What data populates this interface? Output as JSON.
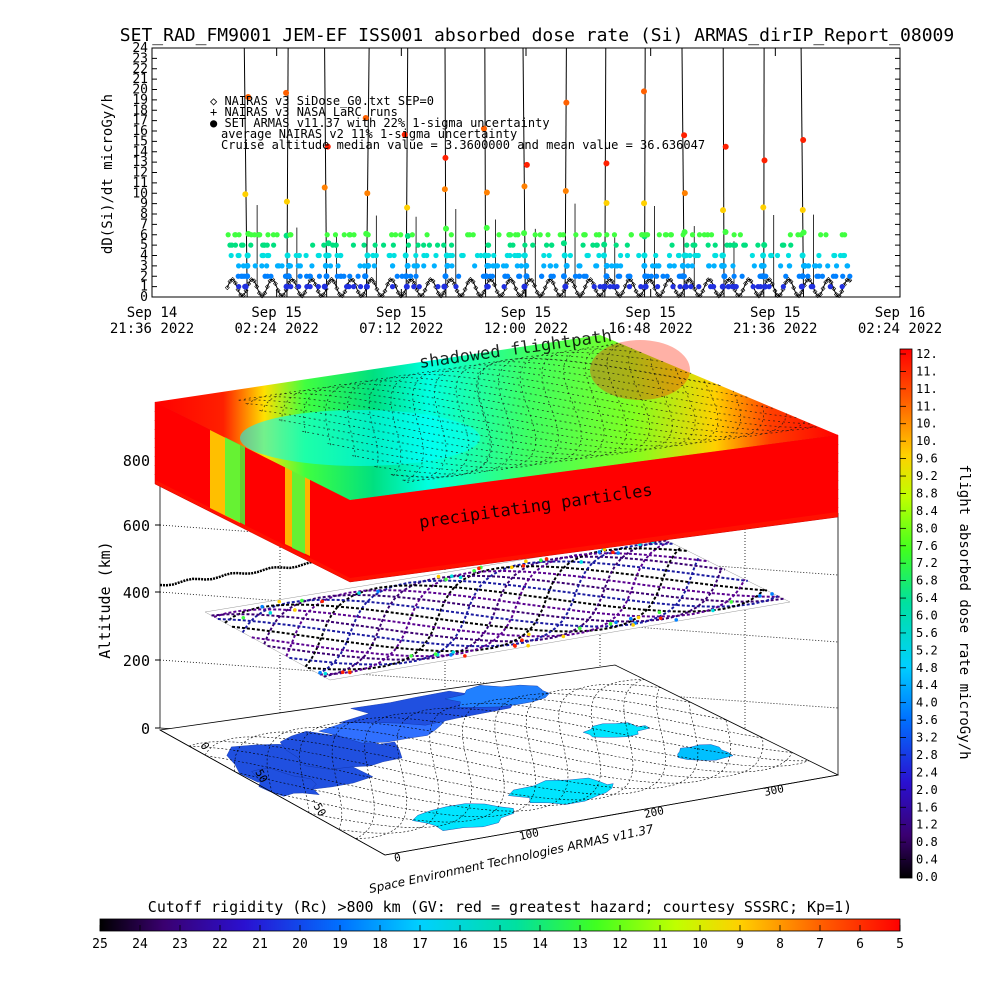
{
  "title": "SET_RAD_FM9001  JEM-EF ISS001 absorbed dose rate (Si) ARMAS_dirIP_Report_08009",
  "top_plot": {
    "ylabel": "dD(Si)/dt microGy/h",
    "legend": [
      "◇ NAIRAS v3 SiDose_G0.txt SEP=0",
      "+ NAIRAS v3 NASA LaRC runs",
      "● SET ARMAS v11.37 with 22% 1-sigma uncertainty",
      "average NAIRAS v2 11% 1-sigma uncertainty",
      "Cruise altitude median value = 3.3600000 and mean value = 36.636047"
    ]
  },
  "chart_data": [
    {
      "type": "scatter",
      "title": "SET_RAD_FM9001  JEM-EF ISS001 absorbed dose rate (Si) ARMAS_dirIP_Report_08009",
      "ylabel": "dD(Si)/dt microGy/h",
      "xlabel": "",
      "ylim": [
        0,
        24
      ],
      "yticks": [
        "0",
        "1",
        "2",
        "3",
        "4",
        "5",
        "6",
        "7",
        "8",
        "9",
        "10",
        "11",
        "12",
        "13",
        "14",
        "15",
        "16",
        "17",
        "18",
        "19",
        "20",
        "21",
        "22",
        "23",
        "24"
      ],
      "xticks": [
        {
          "line1": "Sep 14",
          "line2": "21:36 2022"
        },
        {
          "line1": "Sep 15",
          "line2": "02:24 2022"
        },
        {
          "line1": "Sep 15",
          "line2": "07:12 2022"
        },
        {
          "line1": "Sep 15",
          "line2": "12:00 2022"
        },
        {
          "line1": "Sep 15",
          "line2": "16:48 2022"
        },
        {
          "line1": "Sep 15",
          "line2": "21:36 2022"
        },
        {
          "line1": "Sep 16",
          "line2": "02:24 2022"
        }
      ],
      "x_range": [
        "2022-09-14 21:36",
        "2022-09-16 02:24"
      ],
      "data_range": [
        "2022-09-15 00:30",
        "2022-09-16 00:30"
      ],
      "orbit_period_hours": 1.53,
      "series": [
        {
          "name": "NAIRAS v3 SiDose_G0.txt SEP=0",
          "marker": "diamond",
          "baseline_range": [
            0,
            2
          ]
        },
        {
          "name": "NAIRAS v3 NASA LaRC runs",
          "marker": "plus"
        },
        {
          "name": "SET ARMAS v11.37 with 22% 1-sigma uncertainty",
          "marker": "dot",
          "typical_range": [
            1,
            8
          ],
          "spike_max": 24
        }
      ]
    },
    {
      "type": "heatmap",
      "description_text": "Space Environment Technologies ARMAS v11.37",
      "zlabel": "Altitude (km)",
      "zticks": [
        "0",
        "200",
        "400",
        "600",
        "800"
      ],
      "lat_ticks": [
        "0",
        "50",
        "-50"
      ],
      "lon_ticks": [
        "0",
        "100",
        "200",
        "300"
      ],
      "annotations": [
        "shadowed flightpath",
        "precipitating particles"
      ],
      "layer_altitudes_km": [
        0,
        400,
        900
      ],
      "colorbar_right": {
        "label": "flight absorbed dose rate microGy/h",
        "ticks": [
          "12.",
          "11.",
          "11.",
          "11.",
          "10.",
          "10.",
          "9.6",
          "9.2",
          "8.8",
          "8.4",
          "8.0",
          "7.6",
          "7.2",
          "6.8",
          "6.4",
          "6.0",
          "5.6",
          "5.2",
          "4.8",
          "4.4",
          "4.0",
          "3.6",
          "3.2",
          "2.8",
          "2.4",
          "2.0",
          "1.6",
          "1.2",
          "0.8",
          "0.4",
          "0.0"
        ],
        "range": [
          0,
          12
        ]
      },
      "colorbar_bottom": {
        "label": "Cutoff rigidity (Rc) >800 km (GV: red = greatest hazard; courtesy SSSRC; Kp=1)",
        "ticks": [
          "25",
          "24",
          "23",
          "22",
          "21",
          "20",
          "19",
          "18",
          "17",
          "16",
          "15",
          "14",
          "13",
          "12",
          "11",
          "10",
          "9",
          "8",
          "7",
          "6",
          "5"
        ],
        "range": [
          25,
          5
        ]
      }
    }
  ],
  "colors": {
    "nairas_line": "#000000",
    "map_ocean": "#00e5ff",
    "map_land": "#2050e0",
    "hot": "#ff0000",
    "cool": "#00ffff"
  }
}
